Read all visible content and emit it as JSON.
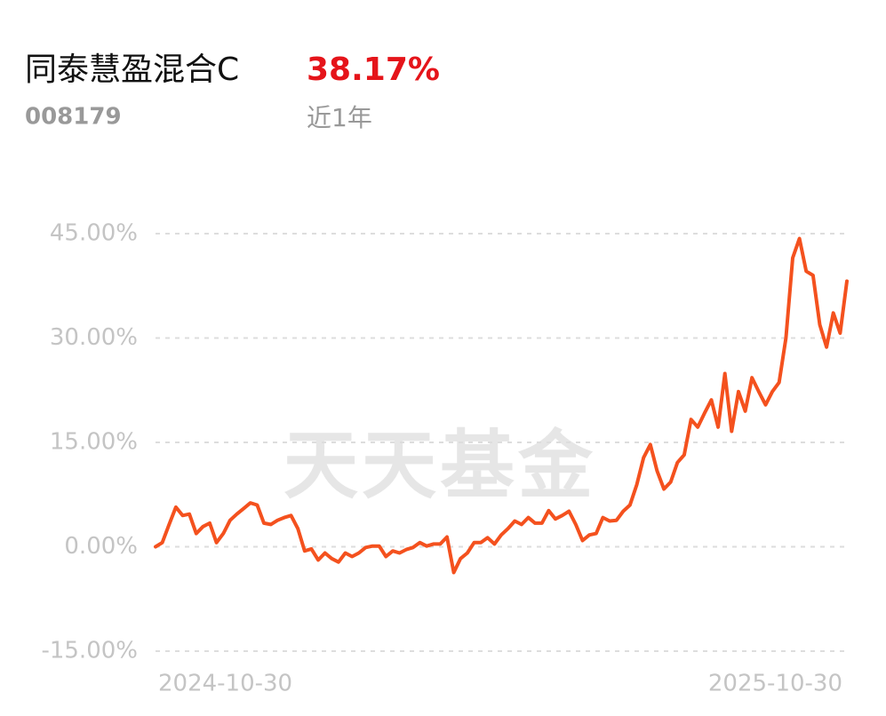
{
  "header": {
    "fund_name": "同泰慧盈混合C",
    "return": "38.17%",
    "code": "008179",
    "period": "近1年"
  },
  "watermark": "天天基金",
  "chart_data": {
    "type": "line",
    "color": "#f4511e",
    "grid": true,
    "ylim": [
      -15,
      45
    ],
    "yticks": [
      {
        "value": 45,
        "label": "45.00%"
      },
      {
        "value": 30,
        "label": "30.00%"
      },
      {
        "value": 15,
        "label": "15.00%"
      },
      {
        "value": 0,
        "label": "0.00%"
      },
      {
        "value": -15,
        "label": "-15.00%"
      }
    ],
    "categories": [
      "2024-10-30",
      null,
      null,
      null,
      null,
      null,
      null,
      null,
      null,
      null,
      null,
      null,
      null,
      null,
      null,
      null,
      null,
      null,
      null,
      null,
      null,
      null,
      null,
      null,
      null,
      null,
      null,
      null,
      null,
      null,
      null,
      null,
      null,
      null,
      null,
      null,
      null,
      null,
      null,
      null,
      null,
      null,
      null,
      null,
      null,
      null,
      null,
      null,
      null,
      null,
      null,
      null,
      null,
      null,
      null,
      null,
      null,
      null,
      null,
      null,
      null,
      null,
      null,
      null,
      null,
      null,
      null,
      null,
      null,
      null,
      null,
      null,
      null,
      null,
      null,
      null,
      null,
      null,
      null,
      null,
      null,
      null,
      null,
      null,
      null,
      null,
      null,
      null,
      null,
      null,
      null,
      null,
      null,
      null,
      null,
      null,
      null,
      null,
      null,
      null,
      null,
      null,
      "2025-10-30"
    ],
    "values": [
      0,
      0.6,
      3.2,
      5.7,
      4.5,
      4.7,
      1.9,
      2.9,
      3.4,
      0.6,
      1.9,
      3.8,
      4.7,
      5.5,
      6.3,
      6.0,
      3.4,
      3.2,
      3.8,
      4.2,
      4.5,
      2.6,
      -0.6,
      -0.3,
      -1.9,
      -0.9,
      -1.7,
      -2.2,
      -0.9,
      -1.4,
      -0.9,
      -0.1,
      0.1,
      0.1,
      -1.4,
      -0.6,
      -0.9,
      -0.4,
      -0.1,
      0.6,
      0.1,
      0.4,
      0.4,
      1.4,
      -3.7,
      -1.7,
      -0.9,
      0.6,
      0.6,
      1.3,
      0.4,
      1.7,
      2.6,
      3.7,
      3.2,
      4.2,
      3.4,
      3.4,
      5.2,
      4.0,
      4.5,
      5.1,
      3.2,
      0.9,
      1.7,
      1.9,
      4.2,
      3.7,
      3.8,
      5.1,
      6.0,
      8.9,
      12.8,
      14.7,
      10.9,
      8.3,
      9.3,
      12.1,
      13.2,
      18.3,
      17.2,
      19.2,
      21.1,
      17.2,
      24.9,
      16.6,
      22.3,
      19.5,
      24.3,
      22.3,
      20.4,
      22.3,
      23.6,
      30.0,
      41.5,
      44.3,
      39.6,
      39.0,
      31.9,
      28.7,
      33.6,
      30.7,
      38.17
    ]
  }
}
